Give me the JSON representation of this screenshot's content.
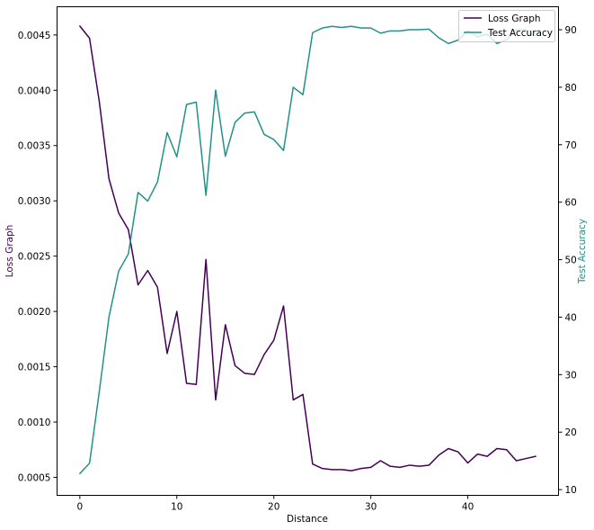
{
  "chart_data": {
    "type": "line",
    "xlabel": "Distance",
    "ylabel_left": "Loss Graph",
    "ylabel_right": "Test Accuracy",
    "xlim": [
      -2.35,
      49.35
    ],
    "ylim_left": [
      0.000337,
      0.004755
    ],
    "ylim_right": [
      9.0,
      94.0
    ],
    "x_ticks": [
      0,
      10,
      20,
      30,
      40
    ],
    "y_left_ticks": [
      0.0005,
      0.001,
      0.0015,
      0.002,
      0.0025,
      0.003,
      0.0035,
      0.004,
      0.0045
    ],
    "y_left_tick_labels": [
      "0.0005",
      "0.0010",
      "0.0015",
      "0.0020",
      "0.0025",
      "0.0030",
      "0.0035",
      "0.0040",
      "0.0045"
    ],
    "y_right_ticks": [
      10,
      20,
      30,
      40,
      50,
      60,
      70,
      80,
      90
    ],
    "legend_position": "top-right",
    "colors": {
      "loss": "#440154",
      "accuracy": "#21918c"
    },
    "x": [
      0,
      1,
      2,
      3,
      4,
      5,
      6,
      7,
      8,
      9,
      10,
      11,
      12,
      13,
      14,
      15,
      16,
      17,
      18,
      19,
      20,
      21,
      22,
      23,
      24,
      25,
      26,
      27,
      28,
      29,
      30,
      31,
      32,
      33,
      34,
      35,
      36,
      37,
      38,
      39,
      40,
      41,
      42,
      43,
      44,
      45,
      46,
      47
    ],
    "series": [
      {
        "name": "Loss Graph",
        "axis": "left",
        "color": "#440154",
        "values": [
          0.00458,
          0.00447,
          0.0039,
          0.0032,
          0.00289,
          0.00274,
          0.00224,
          0.00237,
          0.00222,
          0.00162,
          0.002,
          0.00135,
          0.00134,
          0.00247,
          0.0012,
          0.00188,
          0.00151,
          0.00144,
          0.00143,
          0.00161,
          0.00174,
          0.00205,
          0.0012,
          0.00125,
          0.00062,
          0.00058,
          0.00057,
          0.00057,
          0.00056,
          0.00058,
          0.00059,
          0.00065,
          0.0006,
          0.00059,
          0.00061,
          0.0006,
          0.00061,
          0.0007,
          0.00076,
          0.00073,
          0.00063,
          0.00071,
          0.00069,
          0.00076,
          0.00075,
          0.00065,
          0.00067,
          0.00069
        ]
      },
      {
        "name": "Test Accuracy",
        "axis": "right",
        "color": "#21918c",
        "values": [
          12.8,
          14.6,
          27.0,
          40.0,
          48.0,
          51.0,
          61.7,
          60.2,
          63.5,
          72.1,
          67.9,
          77.0,
          77.4,
          61.2,
          79.5,
          68.0,
          73.9,
          75.5,
          75.7,
          71.8,
          70.9,
          69.0,
          80.0,
          78.7,
          89.5,
          90.3,
          90.6,
          90.4,
          90.6,
          90.3,
          90.3,
          89.4,
          89.8,
          89.8,
          90.0,
          90.0,
          90.1,
          88.6,
          87.6,
          88.2,
          89.8,
          88.8,
          89.2,
          87.6,
          88.3,
          90.0,
          90.0,
          88.9
        ]
      }
    ]
  }
}
